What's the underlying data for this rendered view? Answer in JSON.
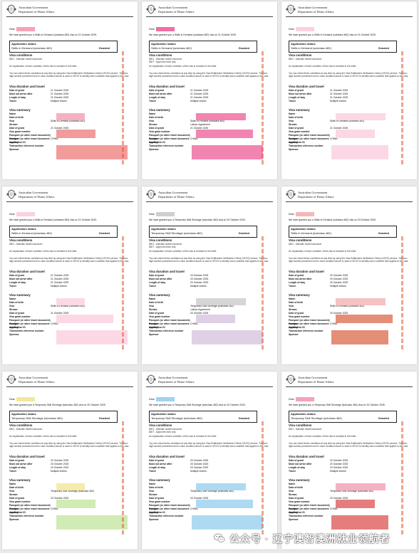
{
  "gov_header": {
    "line1": "Australian Government",
    "line2": "Department of Home Affairs"
  },
  "labels": {
    "application_status": "Application status",
    "granted": "Granted",
    "visa_conditions": "Visa conditions",
    "visa_duration": "Visa duration and travel",
    "visa_summary": "Visa summary",
    "row_date_of_grant": "Date of grant",
    "row_must_not_arrive": "Must not arrive after",
    "row_length_of_stay": "Length of stay",
    "row_travel": "Travel",
    "row_name": "Name",
    "row_dob": "Date of birth",
    "row_visa": "Visa",
    "row_stream": "Stream",
    "row_visa_grant_number": "Visa grant number",
    "row_passport_number": "Passport (or other travel document) number",
    "row_passport_country": "Passport (or other travel document country",
    "row_application_id": "Application ID",
    "row_trn": "Transaction reference number",
    "row_sponsor": "Sponsor",
    "condition_note": "An explanation of each condition of this visa is included in the letter.",
    "vevo_note": "You can check these conditions at any time by using the Visa Entitlement Verification Online (VEVO) service. The four-digit number presented next to each condition above is used in VEVO to identify each condition that applies to this visa.",
    "condition_8501": "8501 - Maintain health insurance",
    "condition_8607": "8607 - Approved work only",
    "travel_value": "Multiple entries",
    "country_value": "CHINA",
    "stream_value": "Labour Agreement"
  },
  "pages": [
    {
      "dear": "Dear",
      "intro": "We have granted you a Skills in Demand (subclass 482) visa on 21 October 2025.",
      "visa": "Skills in Demand (subclass 482)",
      "grant_date": "21 October 2025",
      "arrive_date": "21 October 2025",
      "stay": "21 October 2029"
    },
    {
      "dear": "Dear",
      "intro": "We have granted you a Skills in Demand (subclass 482) visa on 21 October 2025.",
      "visa": "Skills in Demand (subclass 482)",
      "grant_date": "21 October 2025",
      "arrive_date": "21 October 2025",
      "stay": "21 October 2029"
    },
    {
      "dear": "Dear",
      "intro": "We have granted you a Skills in Demand (subclass 482) visa on 21 October 2025.",
      "visa": "Skills in Demand (subclass 482)",
      "grant_date": "21 October 2025",
      "arrive_date": "21 October 2025",
      "stay": "21 October 2029"
    },
    {
      "dear": "Dear",
      "intro": "We have granted you a Skills in Demand (subclass 482) visa on 21 October 2025.",
      "visa": "Skills in Demand (subclass 482)",
      "grant_date": "21 October 2025",
      "arrive_date": "21 October 2025",
      "stay": "21 October 2029"
    },
    {
      "dear": "Dear",
      "intro": "We have granted you a Temporary Skill Shortage (subclass 482) visa on 20 October 2025.",
      "visa": "Temporary Skill Shortage (subclass 482)",
      "grant_date": "20 October 2025",
      "arrive_date": "20 October 2025",
      "stay": "20 October 2029"
    },
    {
      "dear": "Dear",
      "intro": "We have granted you a Skills in Demand (subclass 482) visa on 20 October 2025.",
      "visa": "Skills in Demand (subclass 482)",
      "grant_date": "20 October 2025",
      "arrive_date": "20 October 2025",
      "stay": "20 October 2029"
    },
    {
      "dear": "Dear",
      "intro": "We have granted you a Temporary Skill Shortage (subclass 482) visa on 20 October 2025.",
      "visa": "Temporary Skill Shortage (subclass 482)",
      "grant_date": "20 October 2025",
      "arrive_date": "20 October 2025",
      "stay": "20 October 2029"
    },
    {
      "dear": "Dear",
      "intro": "We have granted you a Temporary Skill Shortage (subclass 482) visa on 20 October 2025.",
      "visa": "Temporary Skill Shortage (subclass 482)",
      "grant_date": "20 October 2025",
      "arrive_date": "20 October 2025",
      "stay": "20 October 2029"
    },
    {
      "dear": "Dear",
      "intro": "We have granted you a Temporary Skill Shortage (subclass 482) visa on 20 October 2025.",
      "visa": "Temporary Skill Shortage (subclass 482)",
      "grant_date": "20 October 2025",
      "arrive_date": "20 October 2025",
      "stay": "20 October 2029"
    }
  ],
  "footer": {
    "account": "公众号 · 辽宁澳智澳洲就业领航者"
  },
  "colors": {
    "redact_pink": "#f5a3b6",
    "redact_salmon": "#f08a8a",
    "redact_light": "#fbd1e2",
    "redact_blue": "#9fd3f0",
    "redact_green": "#c9e7a7",
    "side_stamp": "#e3572f"
  }
}
